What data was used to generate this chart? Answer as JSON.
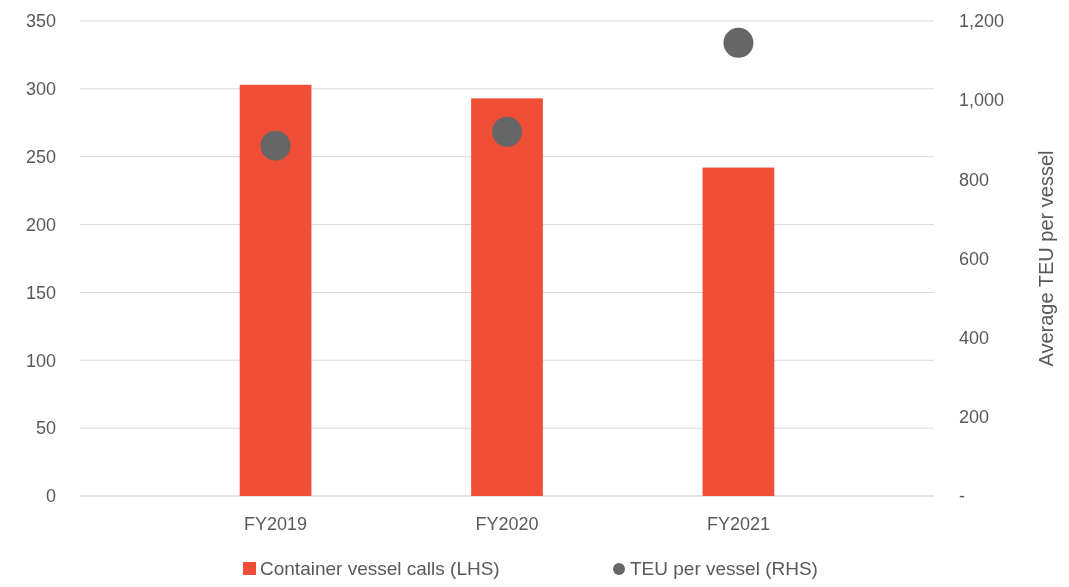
{
  "chart_data": {
    "type": "bar",
    "categories": [
      "FY2019",
      "FY2020",
      "FY2021"
    ],
    "series": [
      {
        "name": "Container vessel calls (LHS)",
        "color": "#f04e37",
        "values": [
          303,
          293,
          242
        ]
      },
      {
        "name": "TEU per vessel (RHS)",
        "type": "scatter",
        "axis": "y2",
        "color": "#666666",
        "values": [
          885,
          920,
          1145
        ]
      }
    ],
    "ylim": [
      0,
      350
    ],
    "yticks": [
      0,
      50,
      100,
      150,
      200,
      250,
      300,
      350
    ],
    "y2lim": [
      0,
      1200
    ],
    "y2ticks": [
      {
        "value": 0,
        "label": "-"
      },
      {
        "value": 200,
        "label": "200"
      },
      {
        "value": 400,
        "label": "400"
      },
      {
        "value": 600,
        "label": "600"
      },
      {
        "value": 800,
        "label": "800"
      },
      {
        "value": 1000,
        "label": "1,000"
      },
      {
        "value": 1200,
        "label": "1,200"
      }
    ],
    "y2label": "Average TEU per vessel",
    "grid": "y",
    "legend": "bottom",
    "marker": "circle"
  }
}
